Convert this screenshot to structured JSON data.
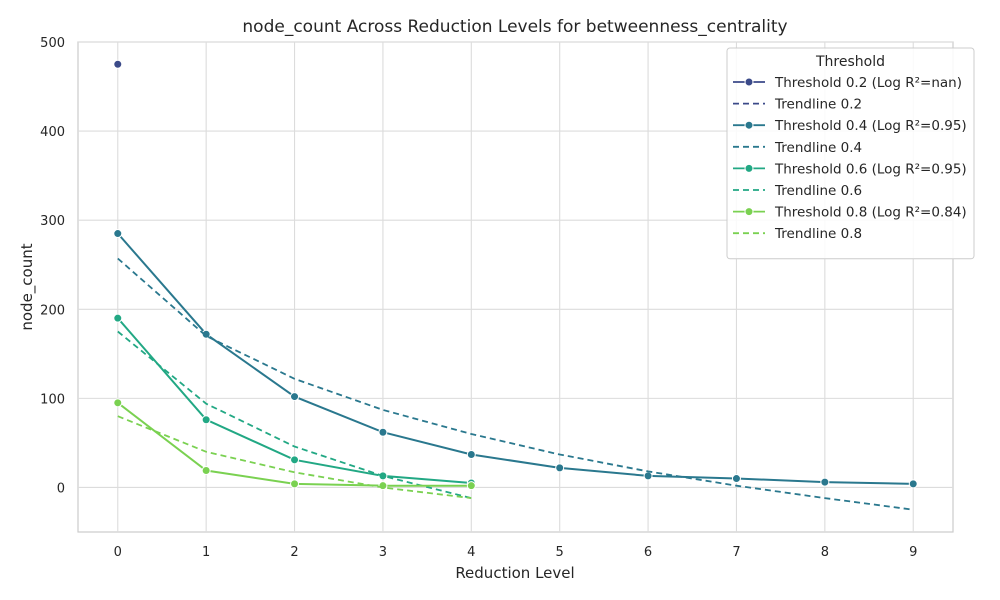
{
  "chart_data": {
    "type": "line",
    "title": "node_count Across Reduction Levels for betweenness_centrality",
    "xlabel": "Reduction Level",
    "ylabel": "node_count",
    "xlim": [
      -0.45,
      9.45
    ],
    "ylim": [
      -50,
      500
    ],
    "xticks": [
      0,
      1,
      2,
      3,
      4,
      5,
      6,
      7,
      8,
      9
    ],
    "yticks": [
      0,
      100,
      200,
      300,
      400,
      500
    ],
    "grid": true,
    "legend": {
      "title": "Threshold",
      "placement": "top-right",
      "entries": [
        {
          "label": "Threshold 0.2 (Log R²=nan)",
          "style": "solid-marker",
          "color": "#3b4a89"
        },
        {
          "label": "Trendline 0.2",
          "style": "dashed",
          "color": "#3b4a89"
        },
        {
          "label": "Threshold 0.4 (Log R²=0.95)",
          "style": "solid-marker",
          "color": "#2a788e"
        },
        {
          "label": "Trendline 0.4",
          "style": "dashed",
          "color": "#2a788e"
        },
        {
          "label": "Threshold 0.6 (Log R²=0.95)",
          "style": "solid-marker",
          "color": "#22a884"
        },
        {
          "label": "Trendline 0.6",
          "style": "dashed",
          "color": "#22a884"
        },
        {
          "label": "Threshold 0.8 (Log R²=0.84)",
          "style": "solid-marker",
          "color": "#7ad151"
        },
        {
          "label": "Trendline 0.8",
          "style": "dashed",
          "color": "#7ad151"
        }
      ]
    },
    "series": [
      {
        "name": "Threshold 0.2 (Log R²=nan)",
        "color": "#3b4a89",
        "style": "solid-marker",
        "x": [
          0
        ],
        "y": [
          475
        ]
      },
      {
        "name": "Trendline 0.2",
        "color": "#3b4a89",
        "style": "dashed",
        "x": [],
        "y": []
      },
      {
        "name": "Threshold 0.4 (Log R²=0.95)",
        "color": "#2a788e",
        "style": "solid-marker",
        "x": [
          0,
          1,
          2,
          3,
          4,
          5,
          6,
          7,
          8,
          9
        ],
        "y": [
          285,
          172,
          102,
          62,
          37,
          22,
          13,
          10,
          6,
          4
        ]
      },
      {
        "name": "Trendline 0.4",
        "color": "#2a788e",
        "style": "dashed",
        "x": [
          0,
          1,
          2,
          3,
          4,
          5,
          6,
          7,
          8,
          9
        ],
        "y": [
          257,
          170,
          122,
          87,
          60,
          37,
          18,
          2,
          -12,
          -25
        ]
      },
      {
        "name": "Threshold 0.6 (Log R²=0.95)",
        "color": "#22a884",
        "style": "solid-marker",
        "x": [
          0,
          1,
          2,
          3,
          4
        ],
        "y": [
          190,
          76,
          31,
          13,
          5
        ]
      },
      {
        "name": "Trendline 0.6",
        "color": "#22a884",
        "style": "dashed",
        "x": [
          0,
          1,
          2,
          3,
          4
        ],
        "y": [
          175,
          94,
          46,
          13,
          -12
        ]
      },
      {
        "name": "Threshold 0.8 (Log R²=0.84)",
        "color": "#7ad151",
        "style": "solid-marker",
        "x": [
          0,
          1,
          2,
          3,
          4
        ],
        "y": [
          95,
          19,
          4,
          2,
          2
        ]
      },
      {
        "name": "Trendline 0.8",
        "color": "#7ad151",
        "style": "dashed",
        "x": [
          0,
          1,
          2,
          3,
          4
        ],
        "y": [
          80,
          40,
          17,
          0,
          -12
        ]
      }
    ]
  }
}
